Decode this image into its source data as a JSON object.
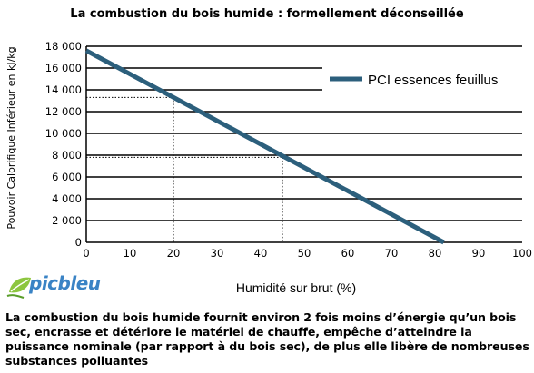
{
  "title": "La combustion du bois humide : formellement déconseillée",
  "caption": "La combustion du bois humide fournit environ 2 fois moins d’énergie qu’un bois sec, encrasse et détériore le matériel de chauffe, empêche d’atteindre la puissance nominale (par rapport à du bois sec), de plus elle libère de nombreuses substances polluantes",
  "logo": {
    "text": "picbleu",
    "icon": "leaf-logo-icon"
  },
  "chart_data": {
    "type": "line",
    "xlabel": "Humidité sur brut (%)",
    "ylabel": "Pouvoir Calorifique Inférieur en kJ/kg",
    "xlim": [
      0,
      100
    ],
    "ylim": [
      0,
      18000
    ],
    "x_ticks": [
      0,
      10,
      20,
      30,
      40,
      50,
      60,
      70,
      80,
      90,
      100
    ],
    "y_ticks": [
      0,
      2000,
      4000,
      6000,
      8000,
      10000,
      12000,
      14000,
      16000,
      18000
    ],
    "x_tick_labels": [
      "0",
      "10",
      "20",
      "30",
      "40",
      "50",
      "60",
      "70",
      "80",
      "90",
      "100"
    ],
    "y_tick_labels": [
      "0",
      "2 000",
      "4 000",
      "6 000",
      "8 000",
      "10 000",
      "12 000",
      "14 000",
      "16 000",
      "18 000"
    ],
    "grid": "horizontal",
    "legend_position": "top-right",
    "series": [
      {
        "name": "PCI essences feuillus",
        "x": [
          0,
          82
        ],
        "y": [
          17600,
          0
        ],
        "color": "#2c5f7c"
      }
    ],
    "reference_lines": [
      {
        "x": 20,
        "y": 13300
      },
      {
        "x": 45,
        "y": 7800
      }
    ]
  }
}
